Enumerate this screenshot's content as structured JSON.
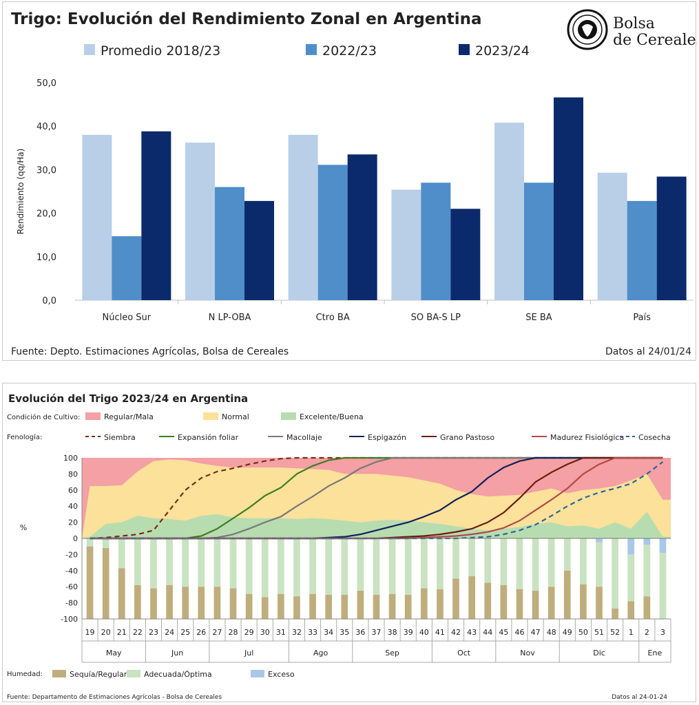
{
  "top_chart": {
    "title": "Trigo: Evolución del Rendimiento Zonal en Argentina",
    "logo_text": [
      "Bolsa",
      "de Cereales"
    ],
    "source": "Fuente: Depto. Estimaciones Agrícolas, Bolsa de Cereales",
    "date": "Datos al 24/01/24",
    "chart_data": {
      "type": "bar",
      "title": "Trigo: Evolución del Rendimiento Zonal en Argentina",
      "xlabel": "",
      "ylabel": "Rendimiento (qq/Ha)",
      "ylim": [
        0,
        50
      ],
      "yticks": [
        "0,0",
        "10,0",
        "20,0",
        "30,0",
        "40,0",
        "50,0"
      ],
      "legend_position": "top",
      "categories": [
        "Núcleo Sur",
        "N LP-OBA",
        "Ctro BA",
        "SO BA-S LP",
        "SE BA",
        "País"
      ],
      "series": [
        {
          "name": "Promedio 2018/23",
          "color": "#b9cfe8",
          "values": [
            38.0,
            36.2,
            38.0,
            25.4,
            40.8,
            29.3
          ]
        },
        {
          "name": "2022/23",
          "color": "#4f8ec9",
          "values": [
            14.7,
            26.0,
            31.1,
            27.0,
            27.0,
            22.8
          ]
        },
        {
          "name": "2023/24",
          "color": "#0b2a6b",
          "values": [
            38.8,
            22.8,
            33.5,
            21.0,
            46.6,
            28.4
          ]
        }
      ]
    }
  },
  "bottom_chart": {
    "title": "Evolución del Trigo 2023/24 en Argentina",
    "source": "Fuente: Departamento de Estimaciones Agrícolas - Bolsa de Cereales",
    "date": "Datos al 24-01-24",
    "legend": {
      "condition_label": "Condición de Cultivo:",
      "condition_items": [
        {
          "name": "Regular/Mala",
          "color": "#f4a0a4"
        },
        {
          "name": "Normal",
          "color": "#fbe19a"
        },
        {
          "name": "Excelente/Buena",
          "color": "#b7dcb0"
        }
      ],
      "phenology_label": "Fenología:",
      "phenology_items": [
        {
          "name": "Siembra",
          "color": "#7a2a18",
          "dashed": true
        },
        {
          "name": "Expansión foliar",
          "color": "#3e7d1e",
          "dashed": false
        },
        {
          "name": "Macollaje",
          "color": "#777777",
          "dashed": false
        },
        {
          "name": "Espigazón",
          "color": "#12205a",
          "dashed": false
        },
        {
          "name": "Grano Pastoso",
          "color": "#6b1d0e",
          "dashed": false
        },
        {
          "name": "Madurez Fisiológica",
          "color": "#b14a45",
          "dashed": false
        },
        {
          "name": "Cosecha",
          "color": "#2f6299",
          "dashed": true
        }
      ],
      "humidity_label": "Humedad:",
      "humidity_items": [
        {
          "name": "Sequía/Regular",
          "color": "#bfae7c"
        },
        {
          "name": "Adecuada/Óptima",
          "color": "#c9e3c1"
        },
        {
          "name": "Exceso",
          "color": "#a9c7e8"
        }
      ]
    },
    "chart_data": {
      "type": "area",
      "ylabel": "%",
      "ylim": [
        -100,
        100
      ],
      "yticks": [
        "-100",
        "-80",
        "-60",
        "-40",
        "-20",
        "0",
        "20",
        "40",
        "60",
        "80",
        "100"
      ],
      "weeks": [
        "19",
        "20",
        "21",
        "22",
        "23",
        "24",
        "25",
        "26",
        "27",
        "28",
        "29",
        "30",
        "31",
        "32",
        "33",
        "34",
        "35",
        "36",
        "37",
        "38",
        "39",
        "40",
        "41",
        "42",
        "43",
        "44",
        "45",
        "46",
        "47",
        "48",
        "49",
        "50",
        "51",
        "52",
        "1",
        "2",
        "3"
      ],
      "months": [
        {
          "name": "May",
          "start": 0,
          "count": 4
        },
        {
          "name": "Jun",
          "start": 4,
          "count": 4
        },
        {
          "name": "Jul",
          "start": 8,
          "count": 5
        },
        {
          "name": "Ago",
          "start": 13,
          "count": 4
        },
        {
          "name": "Sep",
          "start": 17,
          "count": 5
        },
        {
          "name": "Oct",
          "start": 22,
          "count": 4
        },
        {
          "name": "Nov",
          "start": 26,
          "count": 4
        },
        {
          "name": "Dic",
          "start": 30,
          "count": 5
        },
        {
          "name": "Ene",
          "start": 35,
          "count": 2
        }
      ],
      "condition": {
        "excelente_buena": [
          2,
          18,
          20,
          28,
          25,
          24,
          22,
          28,
          30,
          26,
          25,
          25,
          25,
          24,
          25,
          24,
          22,
          20,
          22,
          23,
          22,
          20,
          18,
          15,
          12,
          10,
          12,
          14,
          18,
          20,
          15,
          16,
          12,
          20,
          12,
          33,
          2
        ],
        "normal_top": [
          65,
          65,
          66,
          83,
          96,
          98,
          97,
          93,
          90,
          88,
          88,
          88,
          88,
          87,
          86,
          85,
          80,
          80,
          80,
          78,
          76,
          72,
          68,
          60,
          55,
          52,
          53,
          54,
          58,
          62,
          56,
          60,
          62,
          65,
          72,
          80,
          48
        ]
      },
      "phenology": {
        "siembra": [
          0,
          1,
          3,
          5,
          10,
          35,
          60,
          75,
          83,
          87,
          92,
          96,
          99,
          100,
          100,
          100,
          100,
          100,
          100,
          100,
          100,
          100,
          100,
          100,
          100,
          100,
          100,
          100,
          100,
          100,
          100,
          100,
          100,
          100,
          100,
          100,
          100
        ],
        "expansion_foliar": [
          0,
          0,
          0,
          0,
          0,
          0,
          0,
          3,
          12,
          25,
          38,
          53,
          63,
          80,
          90,
          97,
          100,
          100,
          100,
          100,
          100,
          100,
          100,
          100,
          100,
          100,
          100,
          100,
          100,
          100,
          100,
          100,
          100,
          100,
          100,
          100,
          100
        ],
        "macollaje": [
          0,
          0,
          0,
          0,
          0,
          0,
          0,
          0,
          1,
          5,
          12,
          20,
          27,
          40,
          52,
          65,
          75,
          87,
          95,
          100,
          100,
          100,
          100,
          100,
          100,
          100,
          100,
          100,
          100,
          100,
          100,
          100,
          100,
          100,
          100,
          100,
          100
        ],
        "espigazon": [
          0,
          0,
          0,
          0,
          0,
          0,
          0,
          0,
          0,
          0,
          0,
          0,
          0,
          0,
          0,
          1,
          2,
          5,
          10,
          15,
          20,
          27,
          35,
          48,
          58,
          75,
          88,
          96,
          100,
          100,
          100,
          100,
          100,
          100,
          100,
          100,
          100
        ],
        "grano_pastoso": [
          0,
          0,
          0,
          0,
          0,
          0,
          0,
          0,
          0,
          0,
          0,
          0,
          0,
          0,
          0,
          0,
          0,
          0,
          0,
          1,
          2,
          3,
          5,
          8,
          12,
          20,
          32,
          50,
          70,
          82,
          92,
          100,
          100,
          100,
          100,
          100,
          100
        ],
        "madurez_fisiologica": [
          0,
          0,
          0,
          0,
          0,
          0,
          0,
          0,
          0,
          0,
          0,
          0,
          0,
          0,
          0,
          0,
          0,
          0,
          0,
          0,
          0,
          1,
          2,
          3,
          5,
          8,
          13,
          22,
          35,
          48,
          62,
          80,
          92,
          100,
          100,
          100,
          100
        ],
        "cosecha": [
          0,
          0,
          0,
          0,
          0,
          0,
          0,
          0,
          0,
          0,
          0,
          0,
          0,
          0,
          0,
          0,
          0,
          0,
          0,
          0,
          0,
          0,
          0,
          0,
          1,
          2,
          5,
          10,
          17,
          28,
          40,
          50,
          57,
          62,
          68,
          80,
          95
        ]
      },
      "humidity": {
        "exceso": [
          0,
          0,
          0,
          0,
          0,
          0,
          0,
          0,
          0,
          0,
          0,
          0,
          0,
          0,
          0,
          0,
          0,
          0,
          0,
          0,
          0,
          0,
          0,
          0,
          0,
          0,
          0,
          0,
          0,
          0,
          0,
          0,
          5,
          0,
          20,
          8,
          18
        ],
        "sequia_regular": [
          90,
          88,
          63,
          42,
          38,
          42,
          40,
          40,
          40,
          38,
          31,
          27,
          31,
          28,
          31,
          30,
          30,
          35,
          30,
          31,
          30,
          38,
          37,
          50,
          53,
          45,
          42,
          37,
          35,
          40,
          60,
          43,
          40,
          13,
          22,
          28,
          0
        ]
      }
    }
  }
}
